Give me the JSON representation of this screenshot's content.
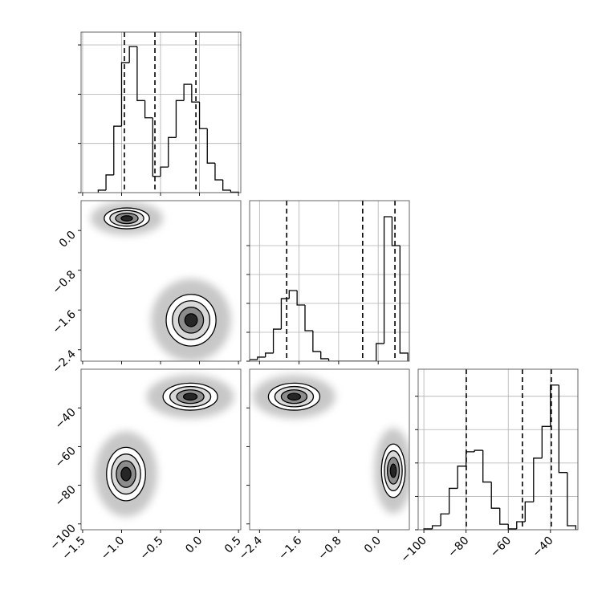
{
  "chart_data": [
    {
      "type": "histogram",
      "color": "#000000",
      "grid": true,
      "show_xlabels": false,
      "show_ylabels": false,
      "bins": [
        -1.3,
        -1.2,
        -1.1,
        -1.0,
        -0.9,
        -0.8,
        -0.7,
        -0.6,
        -0.5,
        -0.4,
        -0.3,
        -0.2,
        -0.1,
        0.0,
        0.1,
        0.2,
        0.3,
        0.4,
        0.5
      ],
      "values": [
        50,
        360,
        1350,
        2640,
        2970,
        1870,
        1520,
        330,
        520,
        1120,
        1870,
        2200,
        1840,
        1300,
        600,
        260,
        50,
        10
      ],
      "quantiles": [
        -0.964,
        -0.572,
        -0.046
      ],
      "xlim": [
        -1.52,
        0.53
      ],
      "xticks": [
        -1.5,
        -1.0,
        -0.5,
        0,
        0.5
      ],
      "ylim": [
        0,
        3261
      ],
      "yticks": [
        0,
        1000,
        2000,
        3000
      ]
    },
    {
      "type": "contour",
      "color": "#000000",
      "grid": false,
      "show_xlabels": false,
      "show_ylabels": true,
      "clusters": [
        {
          "x": -0.933,
          "y": 0.244,
          "sx": 0.145,
          "sy": 0.105
        },
        {
          "x": -0.108,
          "y": -1.805,
          "sx": 0.16,
          "sy": 0.26
        }
      ],
      "xlim": [
        -1.52,
        0.53
      ],
      "xticks": [
        -1.5,
        -1.0,
        -0.5,
        0,
        0.5
      ],
      "ylim": [
        -2.63,
        0.6
      ],
      "yticks": [
        {
          "value": -2.4,
          "label": "−2.4"
        },
        {
          "value": -1.6,
          "label": "−1.6"
        },
        {
          "value": -0.8,
          "label": "−0.8"
        },
        {
          "value": 0,
          "label": "0.0"
        }
      ]
    },
    {
      "type": "histogram",
      "color": "#000000",
      "grid": true,
      "show_xlabels": false,
      "show_ylabels": false,
      "bins": [
        -2.6,
        -2.44,
        -2.28,
        -2.12,
        -1.96,
        -1.8,
        -1.64,
        -1.48,
        -1.32,
        -1.16,
        -1.0,
        -0.84,
        -0.68,
        -0.52,
        -0.36,
        -0.2,
        -0.04,
        0.12,
        0.28,
        0.44,
        0.6
      ],
      "values": [
        110,
        280,
        560,
        2220,
        4330,
        4890,
        3890,
        2110,
        670,
        170,
        0,
        0,
        0,
        0,
        0,
        0,
        1220,
        10000,
        8000,
        560
      ],
      "quantiles": [
        -1.85,
        -0.314,
        0.339
      ],
      "xlim": [
        -2.6,
        0.63
      ],
      "xticks": [
        -2.4,
        -1.6,
        -0.8,
        0
      ],
      "ylim": [
        0,
        11111
      ],
      "yticks": [
        0,
        2000,
        4000,
        6000,
        8000
      ]
    },
    {
      "type": "contour",
      "color": "#000000",
      "grid": false,
      "show_xlabels": true,
      "show_ylabels": true,
      "clusters": [
        {
          "x": -0.118,
          "y": -34.2,
          "sx": 0.175,
          "sy": 3.5
        },
        {
          "x": -0.943,
          "y": -74.2,
          "sx": 0.125,
          "sy": 6.9
        }
      ],
      "xlim": [
        -1.52,
        0.53
      ],
      "xticks": [
        {
          "value": -1.5,
          "label": "−1.5"
        },
        {
          "value": -1.0,
          "label": "−1.0"
        },
        {
          "value": -0.5,
          "label": "−0.5"
        },
        {
          "value": 0,
          "label": "0.0"
        },
        0.5
      ],
      "ylim": [
        -103,
        -20
      ],
      "yticks": [
        {
          "value": -100,
          "label": "−100"
        },
        {
          "value": -80,
          "label": "−80"
        },
        {
          "value": -60,
          "label": "−60"
        },
        {
          "value": -40,
          "label": "−40"
        }
      ]
    },
    {
      "type": "contour",
      "color": "#000000",
      "grid": false,
      "show_xlabels": true,
      "show_ylabels": false,
      "clusters": [
        {
          "x": -1.7,
          "y": -34.2,
          "sx": 0.26,
          "sy": 3.5
        },
        {
          "x": 0.306,
          "y": -72.5,
          "sx": 0.12,
          "sy": 6.9
        }
      ],
      "xlim": [
        -2.6,
        0.63
      ],
      "xticks": [
        {
          "value": -2.4,
          "label": "−2.4"
        },
        {
          "value": -1.6,
          "label": "−1.6"
        },
        {
          "value": -0.8,
          "label": "−0.8"
        },
        {
          "value": 0,
          "label": "0.0"
        }
      ],
      "ylim": [
        -103,
        -20
      ],
      "yticks": [
        -100,
        -80,
        -60,
        -40
      ]
    },
    {
      "type": "histogram",
      "color": "#000000",
      "grid": true,
      "show_xlabels": true,
      "show_ylabels": false,
      "bins": [
        -100,
        -96,
        -92,
        -88,
        -84,
        -80,
        -76,
        -72,
        -68,
        -64,
        -60,
        -56,
        -52,
        -48,
        -44,
        -40,
        -36,
        -32,
        -28
      ],
      "values": [
        50,
        240,
        950,
        2480,
        3810,
        4670,
        4760,
        2860,
        1290,
        330,
        50,
        480,
        1670,
        4290,
        6190,
        8670,
        3430,
        240
      ],
      "quantiles": [
        -79.9,
        -53.3,
        -39.6
      ],
      "xlim": [
        -102.7,
        -27
      ],
      "xticks": [
        {
          "value": -100,
          "label": "−100"
        },
        {
          "value": -80,
          "label": "−80"
        },
        {
          "value": -60,
          "label": "−60"
        },
        {
          "value": -40,
          "label": "−40"
        }
      ],
      "ylim": [
        0,
        9620
      ],
      "yticks": [
        0,
        2000,
        4000,
        6000,
        8000
      ]
    }
  ]
}
